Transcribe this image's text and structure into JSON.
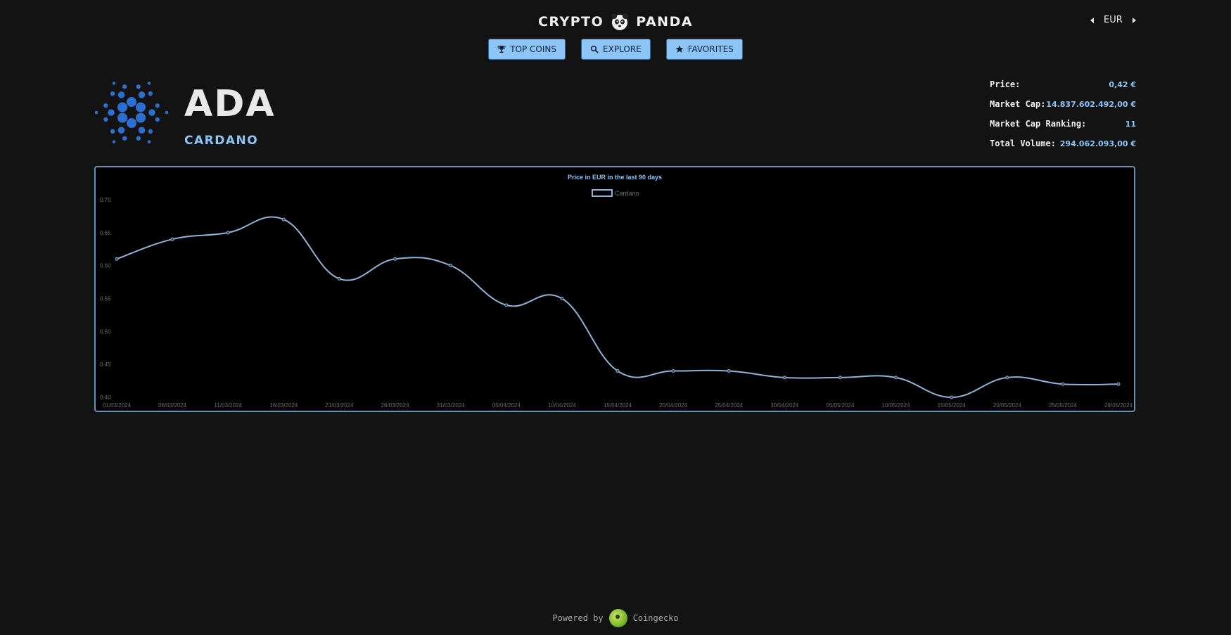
{
  "header": {
    "brand_left": "CRYPTO",
    "brand_right": "PANDA",
    "currency": "EUR"
  },
  "nav": {
    "top_coins": "TOP COINS",
    "explore": "EXPLORE",
    "favorites": "FAVORITES"
  },
  "coin": {
    "symbol": "ADA",
    "name": "CARDANO"
  },
  "stats": [
    {
      "label": "Price:",
      "value": "0,42 €"
    },
    {
      "label": "Market Cap:",
      "value": "14.837.602.492,00 €"
    },
    {
      "label": "Market Cap Ranking:",
      "value": "11"
    },
    {
      "label": "Total Volume:",
      "value": "294.062.093,00 €"
    }
  ],
  "colors": {
    "accent": "#8cc4f6",
    "line": "#8fb4d9",
    "background": "#131313"
  },
  "chart_data": {
    "type": "line",
    "title": "Price in EUR in the last 90 days",
    "legend_position": "top",
    "grid": false,
    "ylim": [
      0.4,
      0.7
    ],
    "y_ticks": [
      "0.40",
      "0.45",
      "0.50",
      "0.55",
      "0.60",
      "0.65",
      "0.70"
    ],
    "categories": [
      "01/03/2024",
      "06/03/2024",
      "11/03/2024",
      "16/03/2024",
      "21/03/2024",
      "26/03/2024",
      "31/03/2024",
      "05/04/2024",
      "10/04/2024",
      "15/04/2024",
      "20/04/2024",
      "25/04/2024",
      "30/04/2024",
      "05/05/2024",
      "10/05/2024",
      "15/05/2024",
      "20/05/2024",
      "25/05/2024",
      "29/05/2024"
    ],
    "series": [
      {
        "name": "Cardano",
        "values": [
          0.61,
          0.64,
          0.65,
          0.67,
          0.58,
          0.61,
          0.6,
          0.54,
          0.55,
          0.44,
          0.44,
          0.44,
          0.43,
          0.43,
          0.43,
          0.4,
          0.43,
          0.42,
          0.42
        ]
      }
    ]
  },
  "footer": {
    "powered_by": "Powered by",
    "provider": "Coingecko"
  }
}
